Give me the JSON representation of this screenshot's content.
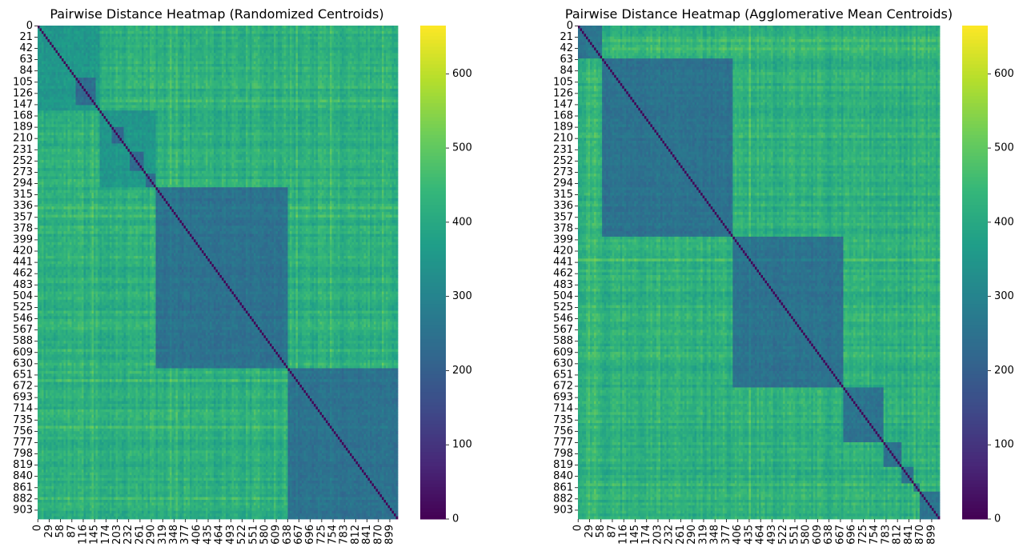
{
  "chart_data": [
    {
      "type": "heatmap",
      "title": "Pairwise Distance Heatmap (Randomized Centroids)",
      "n_points": 920,
      "cluster_blocks": [
        [
          0,
          160
        ],
        [
          160,
          300
        ],
        [
          300,
          640
        ],
        [
          640,
          920
        ]
      ],
      "tight_sub_blocks": [
        [
          95,
          150
        ],
        [
          190,
          220
        ],
        [
          235,
          270
        ],
        [
          275,
          300
        ]
      ],
      "x_tick_labels": [
        "0",
        "29",
        "58",
        "87",
        "116",
        "145",
        "174",
        "203",
        "232",
        "261",
        "290",
        "319",
        "348",
        "377",
        "406",
        "435",
        "464",
        "493",
        "522",
        "551",
        "580",
        "609",
        "638",
        "667",
        "696",
        "725",
        "754",
        "783",
        "812",
        "841",
        "870",
        "899"
      ],
      "y_tick_labels": [
        "0",
        "21",
        "42",
        "63",
        "84",
        "105",
        "126",
        "147",
        "168",
        "189",
        "210",
        "231",
        "252",
        "273",
        "294",
        "315",
        "336",
        "357",
        "378",
        "399",
        "420",
        "441",
        "462",
        "483",
        "504",
        "525",
        "546",
        "567",
        "588",
        "609",
        "630",
        "651",
        "672",
        "693",
        "714",
        "735",
        "756",
        "777",
        "798",
        "819",
        "840",
        "861",
        "882",
        "903"
      ],
      "colorbar": {
        "min": 0,
        "max": 665,
        "ticks": [
          "0",
          "100",
          "200",
          "300",
          "400",
          "500",
          "600"
        ],
        "colormap": "viridis"
      },
      "values": {
        "diagonal": 0,
        "within_cluster": 250,
        "between_cluster": 420
      }
    },
    {
      "type": "heatmap",
      "title": "Pairwise Distance Heatmap (Agglomerative Mean Centroids)",
      "n_points": 920,
      "cluster_blocks": [
        [
          0,
          60
        ],
        [
          60,
          395
        ],
        [
          395,
          675
        ],
        [
          675,
          775
        ],
        [
          775,
          825
        ],
        [
          825,
          855
        ],
        [
          855,
          870
        ],
        [
          870,
          920
        ]
      ],
      "tight_sub_blocks": [],
      "x_tick_labels": [
        "0",
        "29",
        "58",
        "87",
        "116",
        "145",
        "174",
        "203",
        "232",
        "261",
        "290",
        "319",
        "348",
        "377",
        "406",
        "435",
        "464",
        "493",
        "522",
        "551",
        "580",
        "609",
        "638",
        "667",
        "696",
        "725",
        "754",
        "783",
        "812",
        "841",
        "870",
        "899"
      ],
      "y_tick_labels": [
        "0",
        "21",
        "42",
        "63",
        "84",
        "105",
        "126",
        "147",
        "168",
        "189",
        "210",
        "231",
        "252",
        "273",
        "294",
        "315",
        "336",
        "357",
        "378",
        "399",
        "420",
        "441",
        "462",
        "483",
        "504",
        "525",
        "546",
        "567",
        "588",
        "609",
        "630",
        "651",
        "672",
        "693",
        "714",
        "735",
        "756",
        "777",
        "798",
        "819",
        "840",
        "861",
        "882",
        "903"
      ],
      "colorbar": {
        "min": 0,
        "max": 665,
        "ticks": [
          "0",
          "100",
          "200",
          "300",
          "400",
          "500",
          "600"
        ],
        "colormap": "viridis"
      },
      "values": {
        "diagonal": 0,
        "within_cluster": 250,
        "between_cluster": 420
      }
    }
  ]
}
